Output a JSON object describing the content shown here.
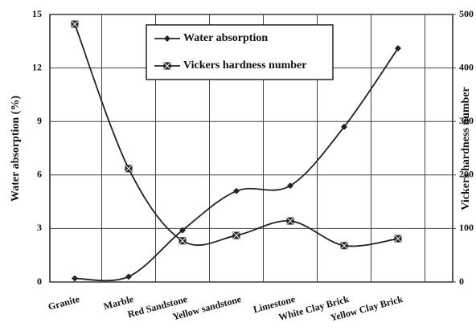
{
  "chart_data": {
    "type": "line",
    "y_label": "Water absorption (%)",
    "y2_label": "Vickers hardness number",
    "categories": [
      "Granite",
      "Marble",
      "Red Sandstone",
      "Yellow sandstone",
      "Limestone",
      "White Clay Brick",
      "Yellow Clay Brick"
    ],
    "series": [
      {
        "name": "Water absorption",
        "color": "#222222",
        "marker": "diamond",
        "values": [
          0.2,
          0.3,
          2.9,
          5.1,
          5.4,
          8.7,
          13.1
        ]
      },
      {
        "name": "Vickers hardness number",
        "color": "#222222",
        "marker": "square",
        "axis": "y2",
        "values": [
          482,
          212,
          77,
          87,
          114,
          68,
          81
        ]
      }
    ],
    "ylim": [
      0,
      15
    ],
    "yticks": [
      0,
      3,
      6,
      9,
      12,
      15
    ],
    "y2lim": [
      0,
      500
    ],
    "y2ticks": [
      0,
      100,
      200,
      300,
      400,
      500
    ],
    "grid": true,
    "legend": "top"
  }
}
